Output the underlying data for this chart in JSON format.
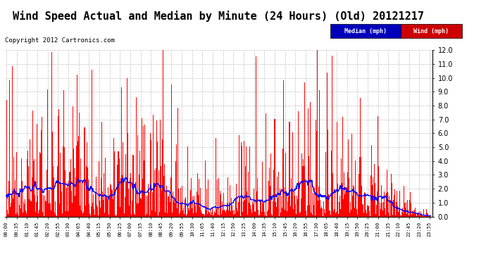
{
  "title": "Wind Speed Actual and Median by Minute (24 Hours) (Old) 20121217",
  "copyright": "Copyright 2012 Cartronics.com",
  "legend_median_label": "Median (mph)",
  "legend_wind_label": "Wind (mph)",
  "ylim": [
    0.0,
    12.0
  ],
  "yticks": [
    0.0,
    1.0,
    2.0,
    3.0,
    4.0,
    5.0,
    6.0,
    7.0,
    8.0,
    9.0,
    10.0,
    11.0,
    12.0
  ],
  "background_color": "#ffffff",
  "grid_color": "#c0c0c0",
  "bar_color": "#ff0000",
  "line_color": "#0000ff",
  "title_fontsize": 11,
  "copyright_fontsize": 6.5,
  "num_minutes": 1440,
  "seed": 42,
  "tick_interval": 35
}
